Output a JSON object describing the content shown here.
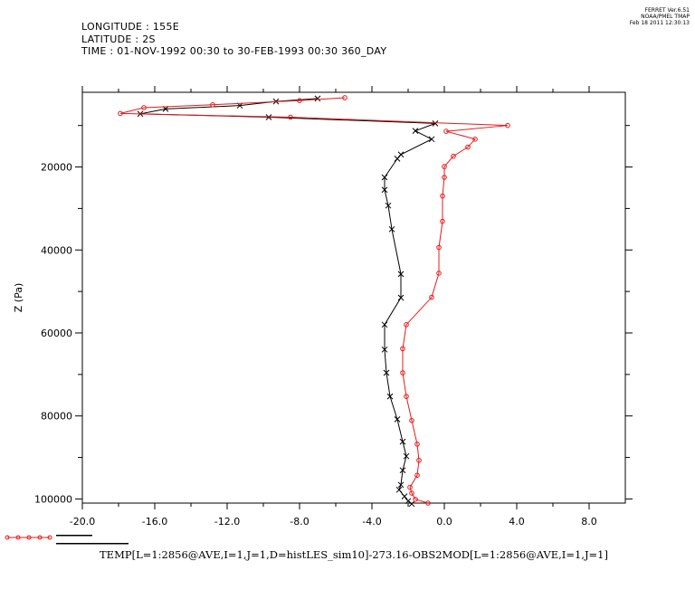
{
  "header": {
    "line1": "LONGITUDE : 155E",
    "line2": "LATITUDE : 2S",
    "line3": "TIME : 01-NOV-1992 00:30 to 30-FEB-1993 00:30 360_DAY"
  },
  "ferret_tag": {
    "line1": "FERRET  Ver.6.51",
    "line2": "NOAA/PMEL TMAP",
    "line3": "Feb 18 2011 12:30:13"
  },
  "footer_title": "TEMP[L=1:2856@AVE,I=1,J=1,D=histLES_sim10]-273.16-OBS2MOD[L=1:2856@AVE,I=1,J=1]",
  "colors": {
    "series_black": "#000000",
    "series_red": "#e8191b"
  },
  "chart_data": {
    "type": "line",
    "xlabel": "",
    "ylabel": "Z (Pa)",
    "xlim": [
      -20.0,
      10.0
    ],
    "ylim": [
      101000,
      2000
    ],
    "y_inverted": true,
    "grid": false,
    "xticks": [
      -20.0,
      -16.0,
      -12.0,
      -8.0,
      -4.0,
      0.0,
      4.0,
      8.0
    ],
    "xtick_labels": [
      "-20.0",
      "-16.0",
      "-12.0",
      "-8.0",
      "-4.0",
      "0.0",
      "4.0",
      "8.0"
    ],
    "yticks": [
      20000,
      40000,
      60000,
      80000,
      100000
    ],
    "ytick_labels": [
      "20000",
      "40000",
      "60000",
      "80000",
      "100000"
    ],
    "legend": {
      "placement": "bottom-left"
    },
    "series": [
      {
        "color": "#000000",
        "marker": "x",
        "points": [
          [
            -7.0,
            3500
          ],
          [
            -9.3,
            4200
          ],
          [
            -11.3,
            5200
          ],
          [
            -15.4,
            6000
          ],
          [
            -16.8,
            7200
          ],
          [
            -9.7,
            8000
          ],
          [
            -0.5,
            9500
          ],
          [
            -1.6,
            11300
          ],
          [
            -0.7,
            13300
          ],
          [
            -2.4,
            17000
          ],
          [
            -2.6,
            18000
          ],
          [
            -3.3,
            22500
          ],
          [
            -3.3,
            25500
          ],
          [
            -3.1,
            29300
          ],
          [
            -2.9,
            35000
          ],
          [
            -2.4,
            45800
          ],
          [
            -2.4,
            51500
          ],
          [
            -3.3,
            58000
          ],
          [
            -3.3,
            64000
          ],
          [
            -3.2,
            69600
          ],
          [
            -3.0,
            75300
          ],
          [
            -2.6,
            80800
          ],
          [
            -2.3,
            86200
          ],
          [
            -2.1,
            89700
          ],
          [
            -2.3,
            93100
          ],
          [
            -2.4,
            96600
          ],
          [
            -2.5,
            97800
          ],
          [
            -2.2,
            99400
          ],
          [
            -2.0,
            100500
          ],
          [
            -1.8,
            101200
          ]
        ]
      },
      {
        "color": "#e8191b",
        "marker": "o",
        "points": [
          [
            -5.5,
            3300
          ],
          [
            -8.0,
            4000
          ],
          [
            -12.8,
            5000
          ],
          [
            -16.6,
            5700
          ],
          [
            -17.9,
            7100
          ],
          [
            -8.5,
            8000
          ],
          [
            3.5,
            10000
          ],
          [
            0.1,
            11400
          ],
          [
            1.7,
            13300
          ],
          [
            1.3,
            15200
          ],
          [
            0.5,
            17400
          ],
          [
            0.0,
            19900
          ],
          [
            0.0,
            22500
          ],
          [
            -0.1,
            27000
          ],
          [
            -0.1,
            33100
          ],
          [
            -0.3,
            39400
          ],
          [
            -0.3,
            45600
          ],
          [
            -0.7,
            51400
          ],
          [
            -2.1,
            58000
          ],
          [
            -2.3,
            63800
          ],
          [
            -2.3,
            69600
          ],
          [
            -2.1,
            75300
          ],
          [
            -1.8,
            81100
          ],
          [
            -1.5,
            86800
          ],
          [
            -1.4,
            90700
          ],
          [
            -1.5,
            94300
          ],
          [
            -1.9,
            97200
          ],
          [
            -1.8,
            98600
          ],
          [
            -1.6,
            100100
          ],
          [
            -0.9,
            101000
          ]
        ]
      }
    ]
  }
}
